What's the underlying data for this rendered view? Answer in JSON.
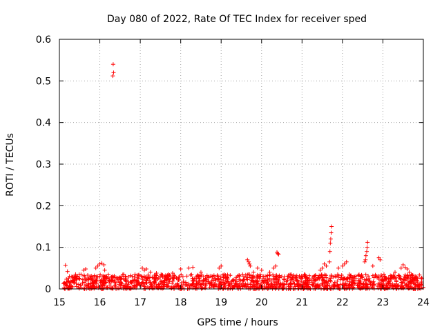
{
  "chart_data": {
    "type": "scatter",
    "title": "Day 080 of 2022, Rate Of TEC Index for receiver sped",
    "xlabel": "GPS time / hours",
    "ylabel": "ROTI / TECUs",
    "xlim": [
      15,
      24
    ],
    "ylim": [
      0,
      0.6
    ],
    "xticks": [
      15,
      16,
      17,
      18,
      19,
      20,
      21,
      22,
      23,
      24
    ],
    "yticks": [
      0,
      0.1,
      0.2,
      0.3,
      0.4,
      0.5,
      0.6
    ],
    "xtick_labels": [
      "15",
      "16",
      "17",
      "18",
      "19",
      "20",
      "21",
      "22",
      "23",
      "24"
    ],
    "ytick_labels": [
      "0",
      "0.1",
      "0.2",
      "0.3",
      "0.4",
      "0.5",
      "0.6"
    ],
    "grid": true,
    "marker": "+",
    "color": "#ff0000",
    "series": [
      {
        "name": "ROTI",
        "points": [
          [
            15.15,
            0.057
          ],
          [
            15.2,
            0.042
          ],
          [
            15.25,
            0.03
          ],
          [
            15.4,
            0.035
          ],
          [
            15.6,
            0.045
          ],
          [
            15.65,
            0.048
          ],
          [
            15.9,
            0.05
          ],
          [
            15.95,
            0.055
          ],
          [
            16.0,
            0.06
          ],
          [
            16.05,
            0.062
          ],
          [
            16.1,
            0.058
          ],
          [
            16.12,
            0.045
          ],
          [
            16.33,
            0.54
          ],
          [
            16.34,
            0.52
          ],
          [
            16.32,
            0.512
          ],
          [
            16.5,
            0.028
          ],
          [
            16.8,
            0.03
          ],
          [
            17.05,
            0.05
          ],
          [
            17.1,
            0.045
          ],
          [
            17.15,
            0.048
          ],
          [
            17.25,
            0.04
          ],
          [
            17.4,
            0.038
          ],
          [
            17.7,
            0.035
          ],
          [
            17.8,
            0.038
          ],
          [
            18.0,
            0.048
          ],
          [
            18.2,
            0.05
          ],
          [
            18.3,
            0.052
          ],
          [
            18.5,
            0.04
          ],
          [
            18.7,
            0.03
          ],
          [
            18.95,
            0.05
          ],
          [
            19.0,
            0.055
          ],
          [
            19.65,
            0.07
          ],
          [
            19.68,
            0.065
          ],
          [
            19.7,
            0.06
          ],
          [
            19.72,
            0.055
          ],
          [
            19.8,
            0.04
          ],
          [
            19.9,
            0.05
          ],
          [
            20.0,
            0.045
          ],
          [
            20.2,
            0.04
          ],
          [
            20.3,
            0.05
          ],
          [
            20.35,
            0.055
          ],
          [
            20.38,
            0.088
          ],
          [
            20.4,
            0.085
          ],
          [
            20.42,
            0.083
          ],
          [
            20.5,
            0.03
          ],
          [
            21.0,
            0.025
          ],
          [
            21.3,
            0.03
          ],
          [
            21.45,
            0.045
          ],
          [
            21.5,
            0.05
          ],
          [
            21.55,
            0.06
          ],
          [
            21.6,
            0.055
          ],
          [
            21.73,
            0.15
          ],
          [
            21.72,
            0.135
          ],
          [
            21.71,
            0.12
          ],
          [
            21.7,
            0.11
          ],
          [
            21.69,
            0.09
          ],
          [
            21.68,
            0.065
          ],
          [
            21.9,
            0.05
          ],
          [
            22.0,
            0.055
          ],
          [
            22.05,
            0.06
          ],
          [
            22.1,
            0.065
          ],
          [
            22.55,
            0.065
          ],
          [
            22.57,
            0.07
          ],
          [
            22.58,
            0.08
          ],
          [
            22.6,
            0.09
          ],
          [
            22.61,
            0.1
          ],
          [
            22.62,
            0.112
          ],
          [
            22.75,
            0.055
          ],
          [
            22.9,
            0.075
          ],
          [
            22.93,
            0.07
          ],
          [
            23.3,
            0.04
          ],
          [
            23.45,
            0.05
          ],
          [
            23.5,
            0.058
          ],
          [
            23.55,
            0.052
          ],
          [
            23.6,
            0.048
          ],
          [
            23.65,
            0.04
          ],
          [
            23.8,
            0.03
          ],
          [
            23.95,
            0.025
          ]
        ]
      }
    ],
    "baseline_band": {
      "description": "dense cluster of ROTI points near baseline",
      "x_range": [
        15.1,
        24.0
      ],
      "y_range": [
        0.0,
        0.035
      ]
    }
  }
}
